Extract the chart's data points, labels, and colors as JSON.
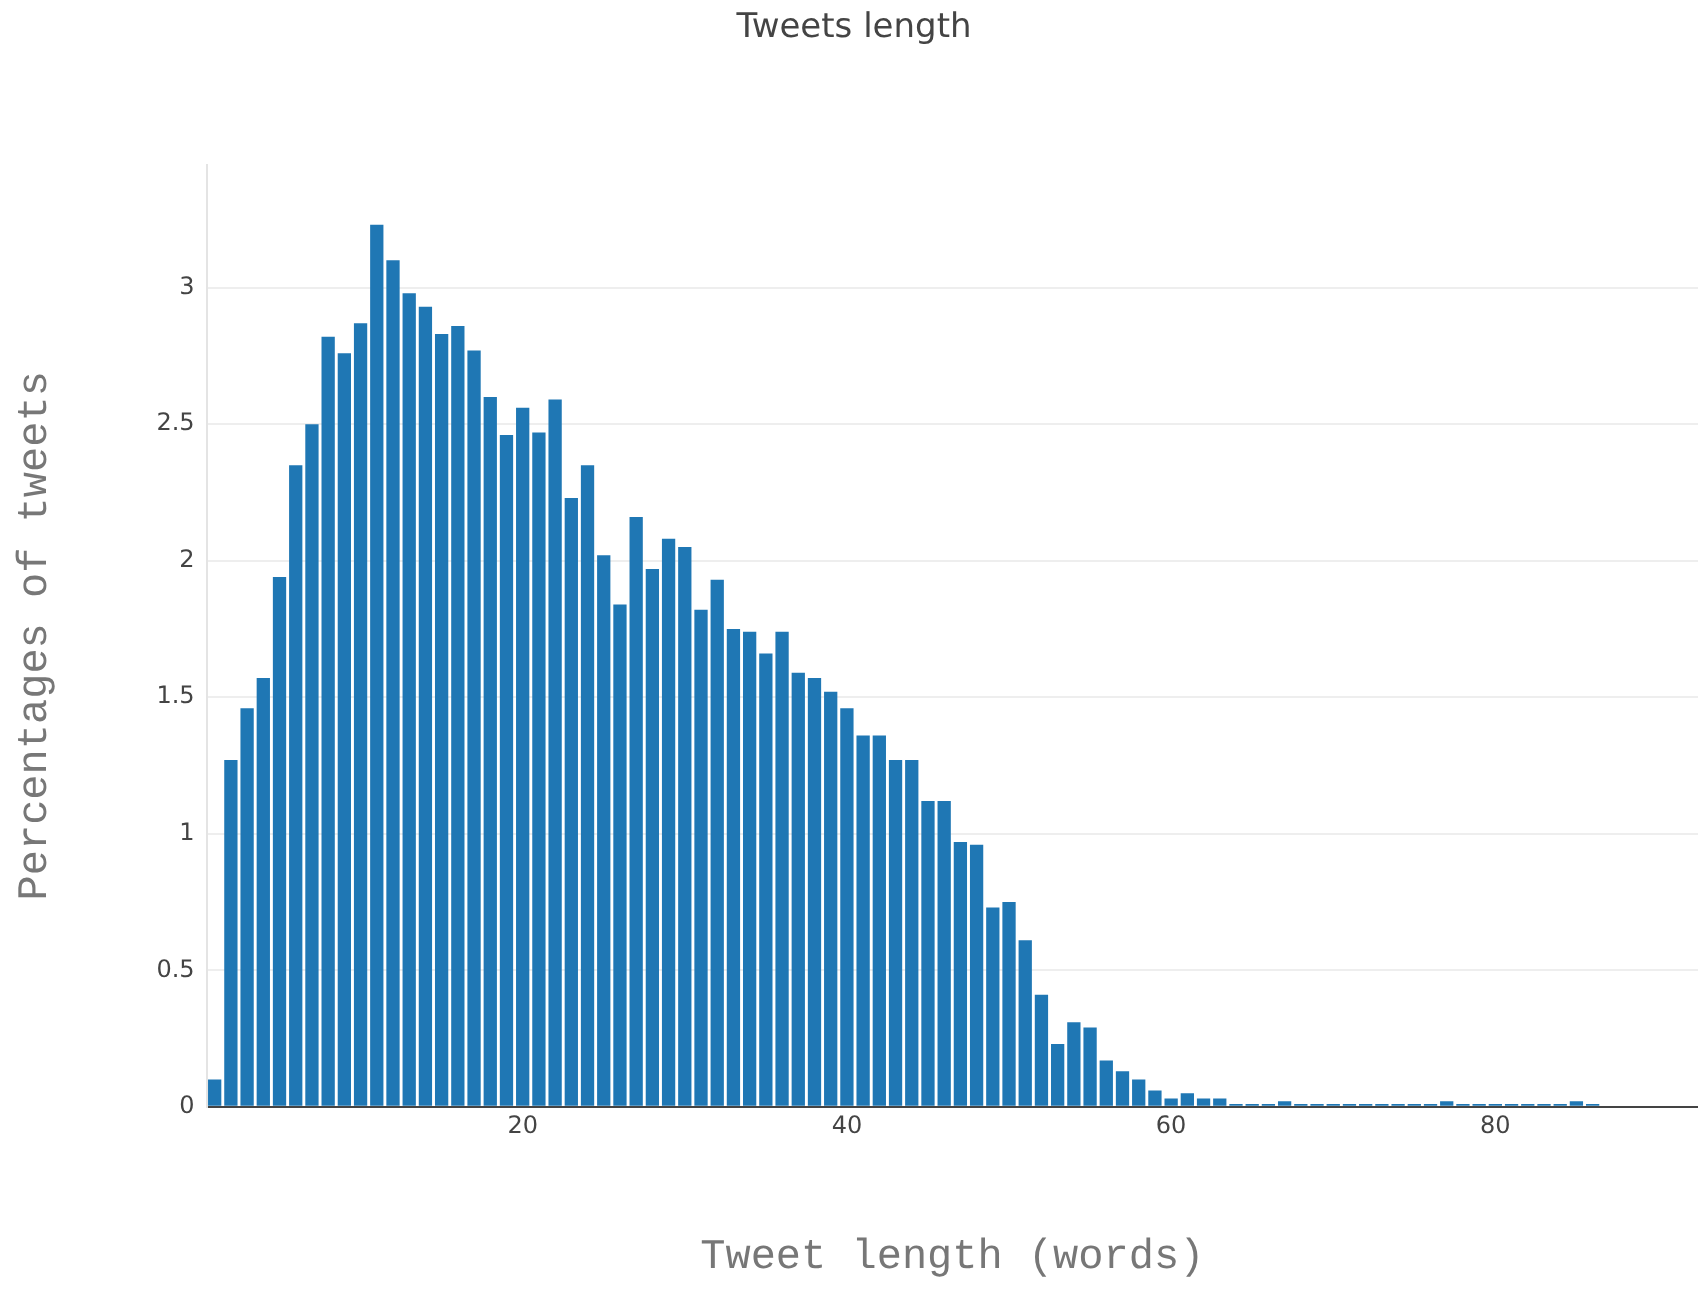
{
  "chart_data": {
    "type": "histogram",
    "title": "Tweets length",
    "xlabel": "Tweet length (words)",
    "ylabel": "Percentages of tweets",
    "bins": [
      0.5,
      1.5,
      2.5,
      3.5,
      4.5,
      5.5,
      6.5,
      7.5,
      8.5,
      9.5,
      10.5,
      11.5,
      12.5,
      13.5,
      14.5,
      15.5,
      16.5,
      17.5,
      18.5,
      19.5,
      20.5,
      21.5,
      22.5,
      23.5,
      24.5,
      25.5,
      26.5,
      27.5,
      28.5,
      29.5,
      30.5,
      31.5,
      32.5,
      33.5,
      34.5,
      35.5,
      36.5,
      37.5,
      38.5,
      39.5,
      40.5,
      41.5,
      42.5,
      43.5,
      44.5,
      45.5,
      46.5,
      47.5,
      48.5,
      49.5,
      50.5,
      51.5,
      52.5,
      53.5,
      54.5,
      55.5,
      56.5,
      57.5,
      58.5,
      59.5,
      60.5,
      61.5,
      62.5,
      63.5,
      64.5,
      65.5,
      66.5,
      67.5,
      68.5,
      69.5,
      70.5,
      71.5,
      72.5,
      73.5,
      74.5,
      75.5,
      76.5,
      77.5,
      78.5,
      79.5,
      80.5,
      81.5,
      82.5,
      83.5,
      84.5,
      85.5,
      86.5
    ],
    "values": [
      0.1,
      1.27,
      1.46,
      1.57,
      1.94,
      2.35,
      2.5,
      2.82,
      2.76,
      2.87,
      3.23,
      3.1,
      2.98,
      2.93,
      2.83,
      2.86,
      2.77,
      2.6,
      2.46,
      2.56,
      2.47,
      2.59,
      2.23,
      2.35,
      2.02,
      1.84,
      2.16,
      1.97,
      2.08,
      2.05,
      1.82,
      1.93,
      1.75,
      1.74,
      1.66,
      1.74,
      1.59,
      1.57,
      1.52,
      1.46,
      1.36,
      1.36,
      1.27,
      1.27,
      1.12,
      1.12,
      0.97,
      0.96,
      0.73,
      0.75,
      0.61,
      0.41,
      0.23,
      0.31,
      0.29,
      0.17,
      0.13,
      0.1,
      0.06,
      0.03,
      0.05,
      0.03,
      0.03,
      0.01,
      0.01,
      0.01,
      0.02,
      0.01,
      0.01,
      0.01,
      0.01,
      0.01,
      0.01,
      0.01,
      0.01,
      0.01,
      0.02,
      0.01,
      0.01,
      0.01,
      0.01,
      0.01,
      0.01,
      0.01,
      0.02,
      0.01
    ],
    "color": "#1f77b4",
    "xlim": [
      0.5,
      92.5
    ],
    "xticks": [
      20,
      40,
      60,
      80
    ],
    "ylim": [
      0,
      3.45
    ],
    "yticks": [
      0,
      0.5,
      1,
      1.5,
      2,
      2.5,
      3
    ],
    "grid": "y"
  }
}
